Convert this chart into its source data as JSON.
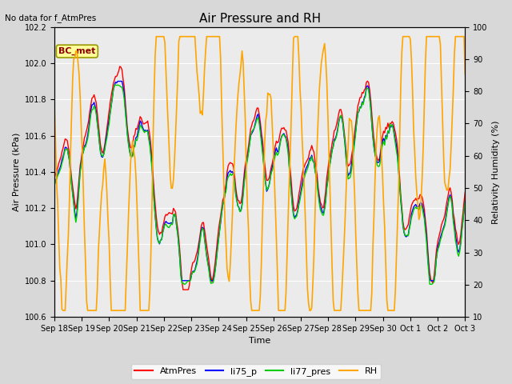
{
  "title": "Air Pressure and RH",
  "no_data_text": "No data for f_AtmPres",
  "annotation_text": "BC_met",
  "xlabel": "Time",
  "ylabel_left": "Air Pressure (kPa)",
  "ylabel_right": "Relativity Humidity (%)",
  "ylim_left": [
    100.6,
    102.2
  ],
  "ylim_right": [
    10,
    100
  ],
  "yticks_left": [
    100.6,
    100.8,
    101.0,
    101.2,
    101.4,
    101.6,
    101.8,
    102.0,
    102.2
  ],
  "yticks_right": [
    10,
    20,
    30,
    40,
    50,
    60,
    70,
    80,
    90,
    100
  ],
  "xtick_labels": [
    "Sep 18",
    "Sep 19",
    "Sep 20",
    "Sep 21",
    "Sep 22",
    "Sep 23",
    "Sep 24",
    "Sep 25",
    "Sep 26",
    "Sep 27",
    "Sep 28",
    "Sep 29",
    "Sep 30",
    "Oct 1",
    "Oct 2",
    "Oct 3"
  ],
  "colors": {
    "AtmPres": "#ff0000",
    "li75_p": "#0000ff",
    "li77_pres": "#00cc00",
    "RH": "#ffa500"
  },
  "line_widths": {
    "AtmPres": 1.0,
    "li75_p": 1.0,
    "li77_pres": 1.0,
    "RH": 1.2
  },
  "bg_color": "#d8d8d8",
  "plot_bg_color": "#ebebeb",
  "title_fontsize": 11,
  "label_fontsize": 8,
  "tick_fontsize": 7,
  "annotation_fontsize": 8
}
